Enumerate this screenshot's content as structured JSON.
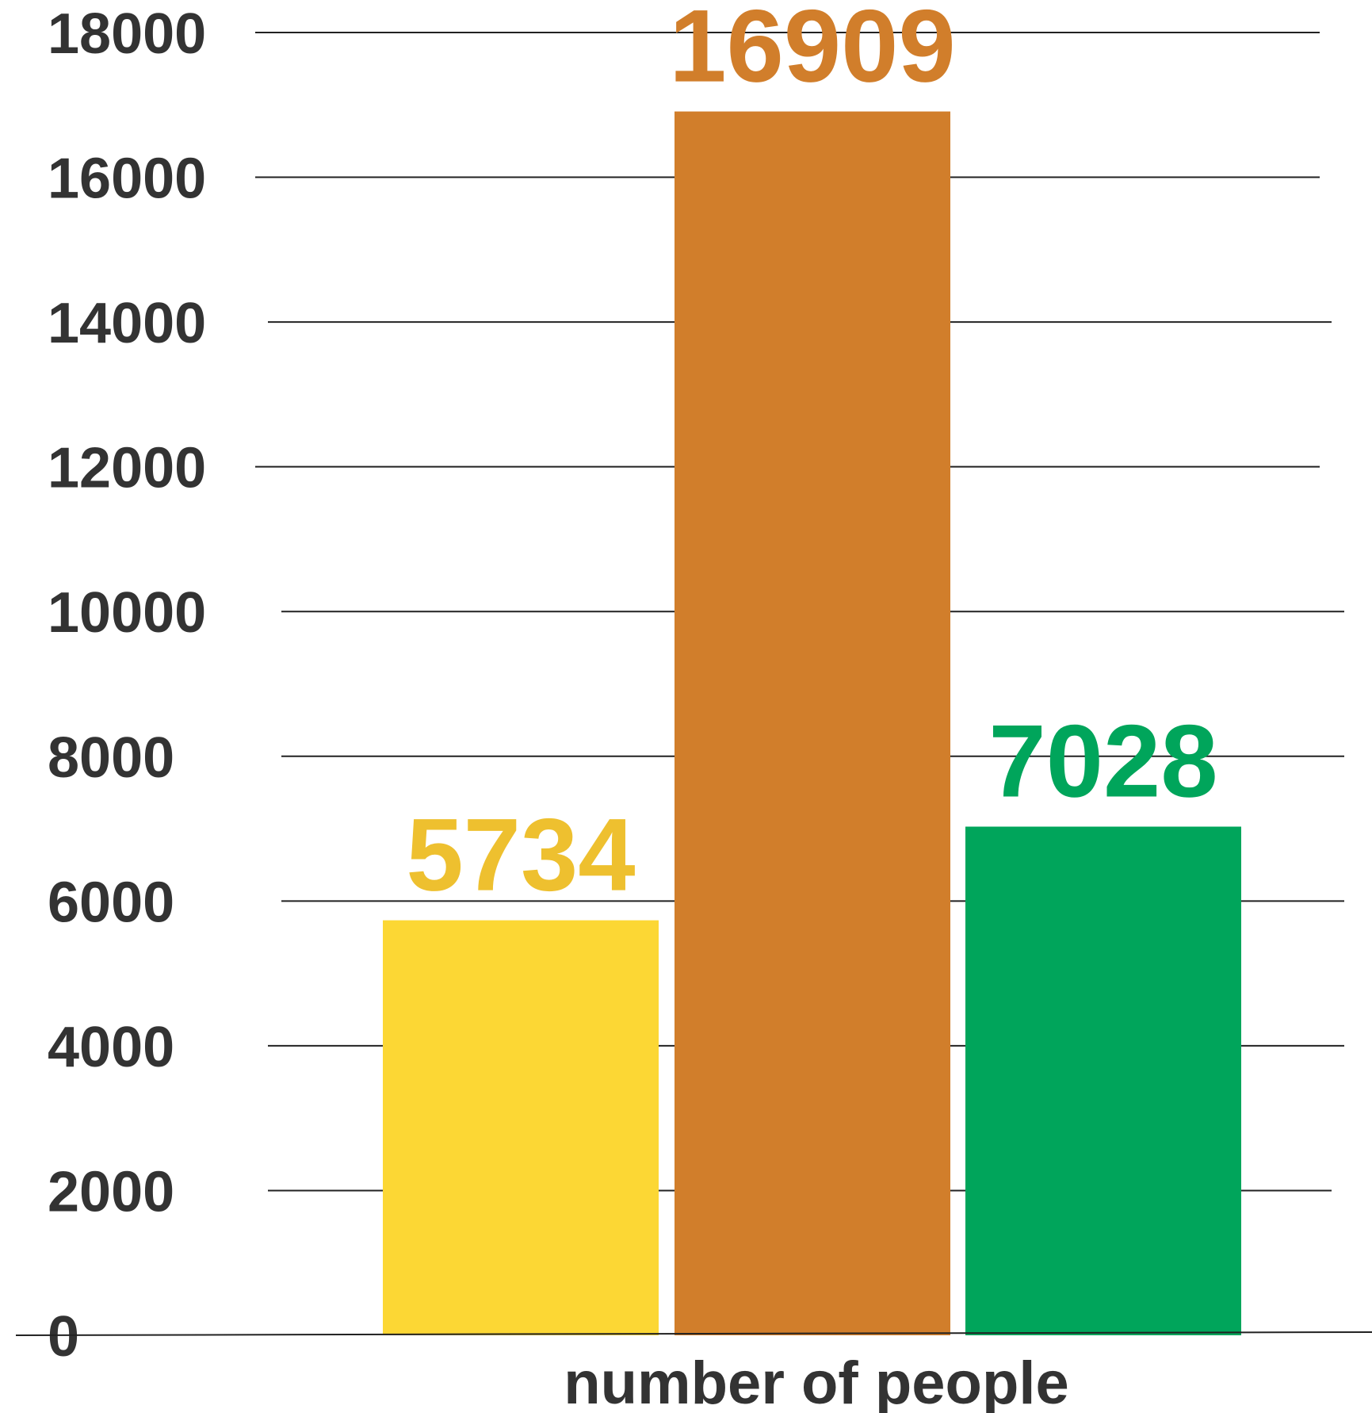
{
  "chart_data": {
    "type": "bar",
    "title": "",
    "xlabel": "number of people",
    "ylabel": "",
    "ylim": [
      0,
      18000
    ],
    "yticks": [
      0,
      2000,
      4000,
      6000,
      8000,
      10000,
      12000,
      14000,
      16000,
      18000
    ],
    "grid": true,
    "categories": [
      "",
      "",
      ""
    ],
    "values": [
      5734,
      16909,
      7028
    ],
    "data_labels": [
      "5734",
      "16909",
      "7028"
    ],
    "colors": [
      "#FCD734",
      "#D17E2B",
      "#00A55B"
    ],
    "label_colors": [
      "#EEC02F",
      "#D17E2B",
      "#00A55B"
    ]
  },
  "colors": {
    "tick_text": "#333333",
    "grid": "#222222",
    "background": "#ffffff"
  }
}
